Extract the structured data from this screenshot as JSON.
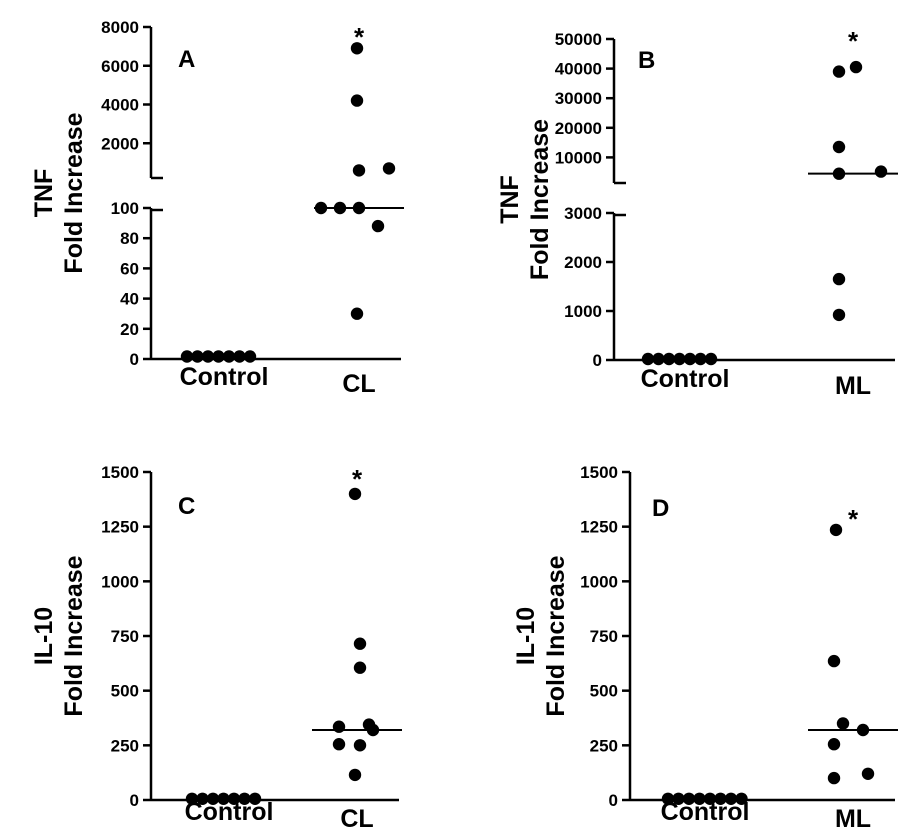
{
  "chart_data": [
    {
      "type": "scatter",
      "panel_label": "A",
      "ylabel_lines": [
        "TNF",
        "Fold Increase"
      ],
      "categories": [
        "Control",
        "CL"
      ],
      "significance": "*",
      "y_axis_break": true,
      "ylim_lower": [
        0,
        100
      ],
      "ylim_upper": [
        0,
        8000
      ],
      "yticks_lower": [
        "0",
        "20",
        "40",
        "60",
        "80",
        "100"
      ],
      "yticks_upper": [
        "2000",
        "4000",
        "6000",
        "8000"
      ],
      "series": [
        {
          "category": "Control",
          "values": [
            1,
            1,
            1,
            1,
            1,
            1,
            1
          ],
          "median": 1
        },
        {
          "category": "CL",
          "values": [
            6900,
            4200,
            600,
            700,
            100,
            100,
            100,
            88,
            30
          ],
          "median": 100
        }
      ]
    },
    {
      "type": "scatter",
      "panel_label": "B",
      "ylabel_lines": [
        "TNF",
        "Fold Increase"
      ],
      "categories": [
        "Control",
        "ML"
      ],
      "significance": "*",
      "y_axis_break": true,
      "ylim_lower": [
        0,
        3000
      ],
      "ylim_upper": [
        0,
        50000
      ],
      "yticks_lower": [
        "0",
        "1000",
        "2000",
        "3000"
      ],
      "yticks_upper": [
        "10000",
        "20000",
        "30000",
        "40000",
        "50000"
      ],
      "series": [
        {
          "category": "Control",
          "values": [
            1,
            1,
            1,
            1,
            1,
            1,
            1
          ],
          "median": 1
        },
        {
          "category": "ML",
          "values": [
            40500,
            39000,
            13500,
            5200,
            4500,
            1650,
            920
          ],
          "median": 4500
        }
      ]
    },
    {
      "type": "scatter",
      "panel_label": "C",
      "ylabel_lines": [
        "IL-10",
        "Fold Increase"
      ],
      "categories": [
        "Control",
        "CL"
      ],
      "significance": "*",
      "ylim": [
        0,
        1500
      ],
      "yticks": [
        "0",
        "250",
        "500",
        "750",
        "1000",
        "1250",
        "1500"
      ],
      "series": [
        {
          "category": "Control",
          "values": [
            1,
            1,
            1,
            1,
            1,
            1,
            1
          ],
          "median": 1
        },
        {
          "category": "CL",
          "values": [
            1400,
            715,
            605,
            345,
            335,
            320,
            255,
            250,
            115
          ],
          "median": 320
        }
      ]
    },
    {
      "type": "scatter",
      "panel_label": "D",
      "ylabel_lines": [
        "IL-10",
        "Fold Increase"
      ],
      "categories": [
        "Control",
        "ML"
      ],
      "significance": "*",
      "ylim": [
        0,
        1500
      ],
      "yticks": [
        "0",
        "250",
        "500",
        "750",
        "1000",
        "1250",
        "1500"
      ],
      "series": [
        {
          "category": "Control",
          "values": [
            1,
            1,
            1,
            1,
            1,
            1,
            1,
            1
          ],
          "median": 1
        },
        {
          "category": "ML",
          "values": [
            1235,
            635,
            350,
            320,
            255,
            120,
            100
          ],
          "median": 320
        }
      ]
    }
  ]
}
